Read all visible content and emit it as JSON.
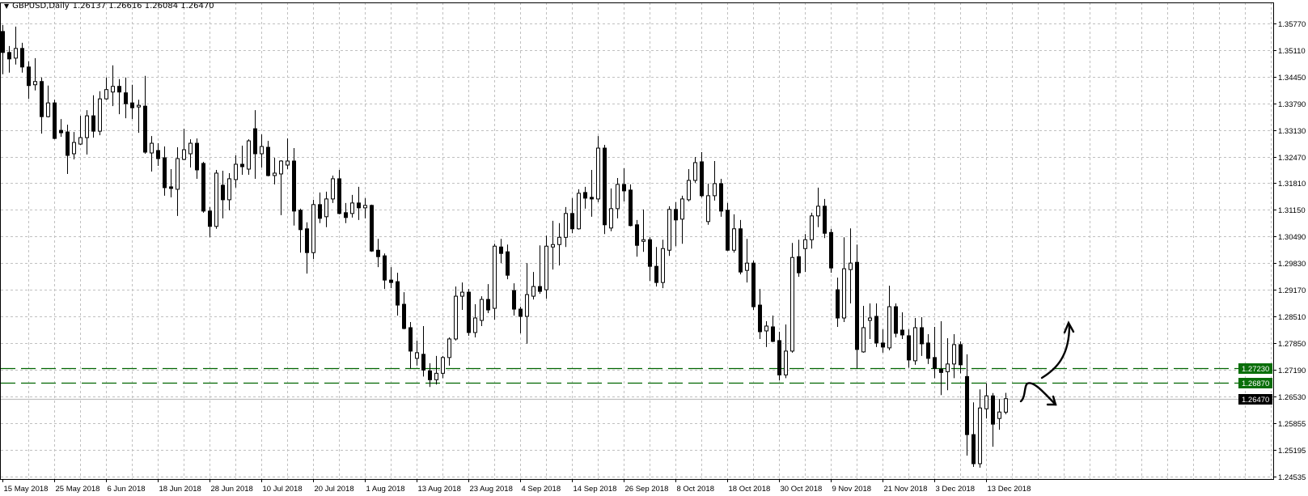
{
  "header": {
    "symbol_label": "GBPUSD,Daily",
    "ohlc_readout": "1.26137 1.26616 1.26084 1.26470",
    "menu_icon": "triangle-down-icon"
  },
  "chart_data": {
    "type": "candlestick",
    "symbol": "GBPUSD",
    "timeframe": "Daily",
    "ylim": [
      1.2448,
      1.3629
    ],
    "grid": true,
    "colors": {
      "bull_body": "#ffffff",
      "bear_body": "#000000",
      "outline": "#000000",
      "grid": "#c0c0c0",
      "level_line": "#006400",
      "price_line": "#c0c0c0",
      "price_label_bg": "#000000",
      "level_label_bg": "#0a6e0a"
    },
    "y_ticks": [
      "1.35770",
      "1.35110",
      "1.34450",
      "1.33790",
      "1.33130",
      "1.32470",
      "1.31810",
      "1.31150",
      "1.30490",
      "1.29830",
      "1.29170",
      "1.28510",
      "1.27850",
      "1.27190",
      "1.26530",
      "1.25855",
      "1.25195",
      "1.24535"
    ],
    "x_tick_labels": [
      "15 May 2018",
      "25 May 2018",
      "6 Jun 2018",
      "18 Jun 2018",
      "28 Jun 2018",
      "10 Jul 2018",
      "20 Jul 2018",
      "1 Aug 2018",
      "13 Aug 2018",
      "23 Aug 2018",
      "4 Sep 2018",
      "14 Sep 2018",
      "26 Sep 2018",
      "8 Oct 2018",
      "18 Oct 2018",
      "30 Oct 2018",
      "9 Nov 2018",
      "21 Nov 2018",
      "3 Dec 2018",
      "13 Dec 2018"
    ],
    "x_tick_every_n_bars": 8,
    "candles_ohlc": [
      [
        1.3557,
        1.3573,
        1.3451,
        1.3505
      ],
      [
        1.3505,
        1.3521,
        1.3455,
        1.3489
      ],
      [
        1.3491,
        1.3569,
        1.3475,
        1.3515
      ],
      [
        1.3515,
        1.3529,
        1.3455,
        1.3469
      ],
      [
        1.3469,
        1.3483,
        1.339,
        1.3423
      ],
      [
        1.3425,
        1.3491,
        1.3411,
        1.3433
      ],
      [
        1.3433,
        1.3443,
        1.3304,
        1.3346
      ],
      [
        1.3346,
        1.3423,
        1.3344,
        1.338
      ],
      [
        1.338,
        1.3388,
        1.329,
        1.3292
      ],
      [
        1.3312,
        1.334,
        1.3296,
        1.3306
      ],
      [
        1.3308,
        1.3326,
        1.3204,
        1.325
      ],
      [
        1.3254,
        1.3308,
        1.324,
        1.3282
      ],
      [
        1.3278,
        1.3348,
        1.3276,
        1.3294
      ],
      [
        1.3294,
        1.3362,
        1.3252,
        1.3348
      ],
      [
        1.3348,
        1.3399,
        1.3294,
        1.331
      ],
      [
        1.331,
        1.3409,
        1.33,
        1.339
      ],
      [
        1.339,
        1.3443,
        1.3388,
        1.3413
      ],
      [
        1.3407,
        1.3473,
        1.3372,
        1.3421
      ],
      [
        1.3421,
        1.3439,
        1.3352,
        1.3407
      ],
      [
        1.3405,
        1.3443,
        1.3342,
        1.3378
      ],
      [
        1.338,
        1.3425,
        1.334,
        1.3368
      ],
      [
        1.337,
        1.3388,
        1.3306,
        1.3374
      ],
      [
        1.3372,
        1.3447,
        1.3254,
        1.3258
      ],
      [
        1.3256,
        1.3298,
        1.321,
        1.328
      ],
      [
        1.3262,
        1.328,
        1.3224,
        1.3242
      ],
      [
        1.3244,
        1.3272,
        1.315,
        1.317
      ],
      [
        1.3172,
        1.3216,
        1.3146,
        1.3168
      ],
      [
        1.3166,
        1.327,
        1.31,
        1.3242
      ],
      [
        1.324,
        1.3316,
        1.3238,
        1.3264
      ],
      [
        1.3254,
        1.329,
        1.322,
        1.328
      ],
      [
        1.328,
        1.3292,
        1.3192,
        1.3214
      ],
      [
        1.323,
        1.3234,
        1.3108,
        1.3112
      ],
      [
        1.3112,
        1.3122,
        1.3047,
        1.3074
      ],
      [
        1.3074,
        1.3214,
        1.3068,
        1.3206
      ],
      [
        1.3176,
        1.3212,
        1.3094,
        1.314
      ],
      [
        1.314,
        1.3206,
        1.3114,
        1.3192
      ],
      [
        1.319,
        1.325,
        1.317,
        1.3228
      ],
      [
        1.3228,
        1.3274,
        1.3202,
        1.3222
      ],
      [
        1.3216,
        1.329,
        1.3202,
        1.3286
      ],
      [
        1.3316,
        1.3362,
        1.3192,
        1.3254
      ],
      [
        1.3254,
        1.3302,
        1.322,
        1.3272
      ],
      [
        1.327,
        1.3286,
        1.3198,
        1.32
      ],
      [
        1.32,
        1.3244,
        1.3178,
        1.3206
      ],
      [
        1.3204,
        1.3238,
        1.3102,
        1.3236
      ],
      [
        1.3226,
        1.3292,
        1.3216,
        1.3236
      ],
      [
        1.3236,
        1.3268,
        1.3076,
        1.3112
      ],
      [
        1.3114,
        1.3118,
        1.3009,
        1.3066
      ],
      [
        1.3068,
        1.3084,
        1.2957,
        1.3009
      ],
      [
        1.3009,
        1.314,
        1.2993,
        1.3128
      ],
      [
        1.3128,
        1.3158,
        1.3082,
        1.3094
      ],
      [
        1.3098,
        1.316,
        1.3072,
        1.3142
      ],
      [
        1.3142,
        1.32,
        1.3132,
        1.3192
      ],
      [
        1.3192,
        1.3214,
        1.3104,
        1.3106
      ],
      [
        1.3108,
        1.3132,
        1.3082,
        1.3096
      ],
      [
        1.3106,
        1.3152,
        1.3096,
        1.3132
      ],
      [
        1.3132,
        1.3172,
        1.309,
        1.312
      ],
      [
        1.312,
        1.3144,
        1.3094,
        1.3126
      ],
      [
        1.3126,
        1.3128,
        1.3011,
        1.3013
      ],
      [
        1.3015,
        1.3043,
        1.2973,
        1.2999
      ],
      [
        1.3001,
        1.3007,
        1.2919,
        1.2941
      ],
      [
        1.2941,
        1.2973,
        1.2921,
        1.2935
      ],
      [
        1.2937,
        1.2959,
        1.2853,
        1.2879
      ],
      [
        1.2881,
        1.2911,
        1.2819,
        1.2821
      ],
      [
        1.2823,
        1.2837,
        1.2722,
        1.2765
      ],
      [
        1.2747,
        1.2791,
        1.2729,
        1.2761
      ],
      [
        1.2757,
        1.2827,
        1.2702,
        1.2718
      ],
      [
        1.2716,
        1.2735,
        1.2676,
        1.2694
      ],
      [
        1.2694,
        1.2753,
        1.2682,
        1.271
      ],
      [
        1.271,
        1.2753,
        1.2698,
        1.2749
      ],
      [
        1.2749,
        1.2799,
        1.2729,
        1.2795
      ],
      [
        1.2795,
        1.2925,
        1.2791,
        1.2901
      ],
      [
        1.2901,
        1.2935,
        1.2867,
        1.2911
      ],
      [
        1.2911,
        1.2919,
        1.2803,
        1.2811
      ],
      [
        1.2811,
        1.2881,
        1.2799,
        1.2847
      ],
      [
        1.2841,
        1.2901,
        1.2827,
        1.2893
      ],
      [
        1.2893,
        1.2931,
        1.2859,
        1.2867
      ],
      [
        1.2871,
        1.3031,
        1.2843,
        1.3025
      ],
      [
        1.3023,
        1.3043,
        1.2983,
        1.3007
      ],
      [
        1.3011,
        1.3029,
        1.2943,
        1.2953
      ],
      [
        1.2915,
        1.2933,
        1.2853,
        1.2869
      ],
      [
        1.2869,
        1.2875,
        1.2809,
        1.2851
      ],
      [
        1.2851,
        1.2983,
        1.2783,
        1.2905
      ],
      [
        1.2901,
        1.2961,
        1.2893,
        1.2925
      ],
      [
        1.2925,
        1.3027,
        1.2907,
        1.2913
      ],
      [
        1.2917,
        1.3051,
        1.2895,
        1.3025
      ],
      [
        1.3023,
        1.3088,
        1.2967,
        1.3029
      ],
      [
        1.3029,
        1.3082,
        1.2977,
        1.3047
      ],
      [
        1.3047,
        1.3122,
        1.3023,
        1.3106
      ],
      [
        1.3106,
        1.3144,
        1.3057,
        1.3068
      ],
      [
        1.3068,
        1.3166,
        1.3066,
        1.3156
      ],
      [
        1.3158,
        1.3172,
        1.3118,
        1.3144
      ],
      [
        1.3146,
        1.3214,
        1.3098,
        1.3142
      ],
      [
        1.3142,
        1.3298,
        1.3134,
        1.3268
      ],
      [
        1.3268,
        1.3276,
        1.3055,
        1.3078
      ],
      [
        1.307,
        1.3168,
        1.3062,
        1.3118
      ],
      [
        1.3118,
        1.3194,
        1.3094,
        1.3178
      ],
      [
        1.3178,
        1.3218,
        1.3136,
        1.3162
      ],
      [
        1.3164,
        1.3178,
        1.3074,
        1.3076
      ],
      [
        1.3078,
        1.309,
        1.2999,
        1.3027
      ],
      [
        1.3037,
        1.3116,
        1.3011,
        1.3041
      ],
      [
        1.3041,
        1.3047,
        1.2939,
        1.2975
      ],
      [
        1.2975,
        1.3023,
        1.2925,
        1.2935
      ],
      [
        1.2935,
        1.3041,
        1.2921,
        1.3019
      ],
      [
        1.3015,
        1.3124,
        1.3001,
        1.3116
      ],
      [
        1.3116,
        1.3134,
        1.3025,
        1.309
      ],
      [
        1.3092,
        1.315,
        1.3031,
        1.3142
      ],
      [
        1.314,
        1.3216,
        1.3136,
        1.3188
      ],
      [
        1.3188,
        1.3246,
        1.3182,
        1.3232
      ],
      [
        1.3234,
        1.3258,
        1.3146,
        1.315
      ],
      [
        1.3086,
        1.318,
        1.3078,
        1.315
      ],
      [
        1.315,
        1.3236,
        1.3138,
        1.318
      ],
      [
        1.318,
        1.3192,
        1.3098,
        1.3112
      ],
      [
        1.3114,
        1.3132,
        1.3013,
        1.3015
      ],
      [
        1.3015,
        1.3104,
        1.3009,
        1.3068
      ],
      [
        1.3068,
        1.309,
        1.2955,
        1.2961
      ],
      [
        1.2965,
        1.3043,
        1.2935,
        1.2983
      ],
      [
        1.2983,
        1.2989,
        1.2867,
        1.2875
      ],
      [
        1.2879,
        1.2919,
        1.2795,
        1.2813
      ],
      [
        1.2815,
        1.2839,
        1.2775,
        1.2827
      ],
      [
        1.2825,
        1.2853,
        1.2787,
        1.2789
      ],
      [
        1.2791,
        1.2813,
        1.2692,
        1.2706
      ],
      [
        1.2706,
        1.2831,
        1.2698,
        1.2765
      ],
      [
        1.2765,
        1.3033,
        1.2761,
        1.2997
      ],
      [
        1.2999,
        1.3041,
        1.2949,
        1.2959
      ],
      [
        1.3019,
        1.3055,
        1.2961,
        1.3041
      ],
      [
        1.3041,
        1.3108,
        1.3019,
        1.31
      ],
      [
        1.31,
        1.317,
        1.3072,
        1.3124
      ],
      [
        1.3124,
        1.3142,
        1.3045,
        1.3057
      ],
      [
        1.3059,
        1.3068,
        1.2959,
        1.2971
      ],
      [
        1.2917,
        1.2947,
        1.2825,
        1.2847
      ],
      [
        1.2847,
        1.3047,
        1.2837,
        1.2969
      ],
      [
        1.2967,
        1.3069,
        1.2883,
        1.2983
      ],
      [
        1.2985,
        1.3029,
        1.2722,
        1.2769
      ],
      [
        1.2763,
        1.2877,
        1.2761,
        1.2823
      ],
      [
        1.2841,
        1.2883,
        1.2795,
        1.2847
      ],
      [
        1.2851,
        1.2883,
        1.2775,
        1.2785
      ],
      [
        1.2785,
        1.2819,
        1.2761,
        1.2775
      ],
      [
        1.2773,
        1.2927,
        1.2767,
        1.2875
      ],
      [
        1.2875,
        1.2883,
        1.2799,
        1.2809
      ],
      [
        1.2817,
        1.2861,
        1.2795,
        1.2805
      ],
      [
        1.2803,
        1.2819,
        1.2724,
        1.2743
      ],
      [
        1.2741,
        1.2847,
        1.2731,
        1.2823
      ],
      [
        1.2823,
        1.2849,
        1.2753,
        1.2783
      ],
      [
        1.2785,
        1.2807,
        1.2733,
        1.2747
      ],
      [
        1.2749,
        1.2825,
        1.2698,
        1.2722
      ],
      [
        1.272,
        1.2839,
        1.2656,
        1.2712
      ],
      [
        1.2714,
        1.2797,
        1.2668,
        1.2733
      ],
      [
        1.2733,
        1.2807,
        1.2698,
        1.2781
      ],
      [
        1.2781,
        1.2789,
        1.271,
        1.2731
      ],
      [
        1.2702,
        1.2757,
        1.2506,
        1.2558
      ],
      [
        1.2558,
        1.2638,
        1.2478,
        1.2486
      ],
      [
        1.2486,
        1.267,
        1.2476,
        1.2624
      ],
      [
        1.2622,
        1.2685,
        1.2598,
        1.2654
      ],
      [
        1.2654,
        1.2661,
        1.2528,
        1.2584
      ],
      [
        1.2598,
        1.2646,
        1.257,
        1.2614
      ],
      [
        1.26137,
        1.26616,
        1.26084,
        1.2647
      ]
    ],
    "horizontal_lines": [
      {
        "price": 1.2723,
        "label": "1.27230",
        "style": "dashed",
        "color": "#006400",
        "label_bg": "#0a6e0a"
      },
      {
        "price": 1.2687,
        "label": "1.26870",
        "style": "dashed",
        "color": "#006400",
        "label_bg": "#0a6e0a"
      }
    ],
    "current_price": {
      "price": 1.2647,
      "label": "1.26470"
    },
    "annotations": [
      {
        "kind": "hand-drawn-arrow",
        "direction": "up",
        "icon": "curved-arrow-up-icon"
      },
      {
        "kind": "hand-drawn-arrow",
        "direction": "down",
        "icon": "curved-arrow-down-icon"
      }
    ]
  }
}
